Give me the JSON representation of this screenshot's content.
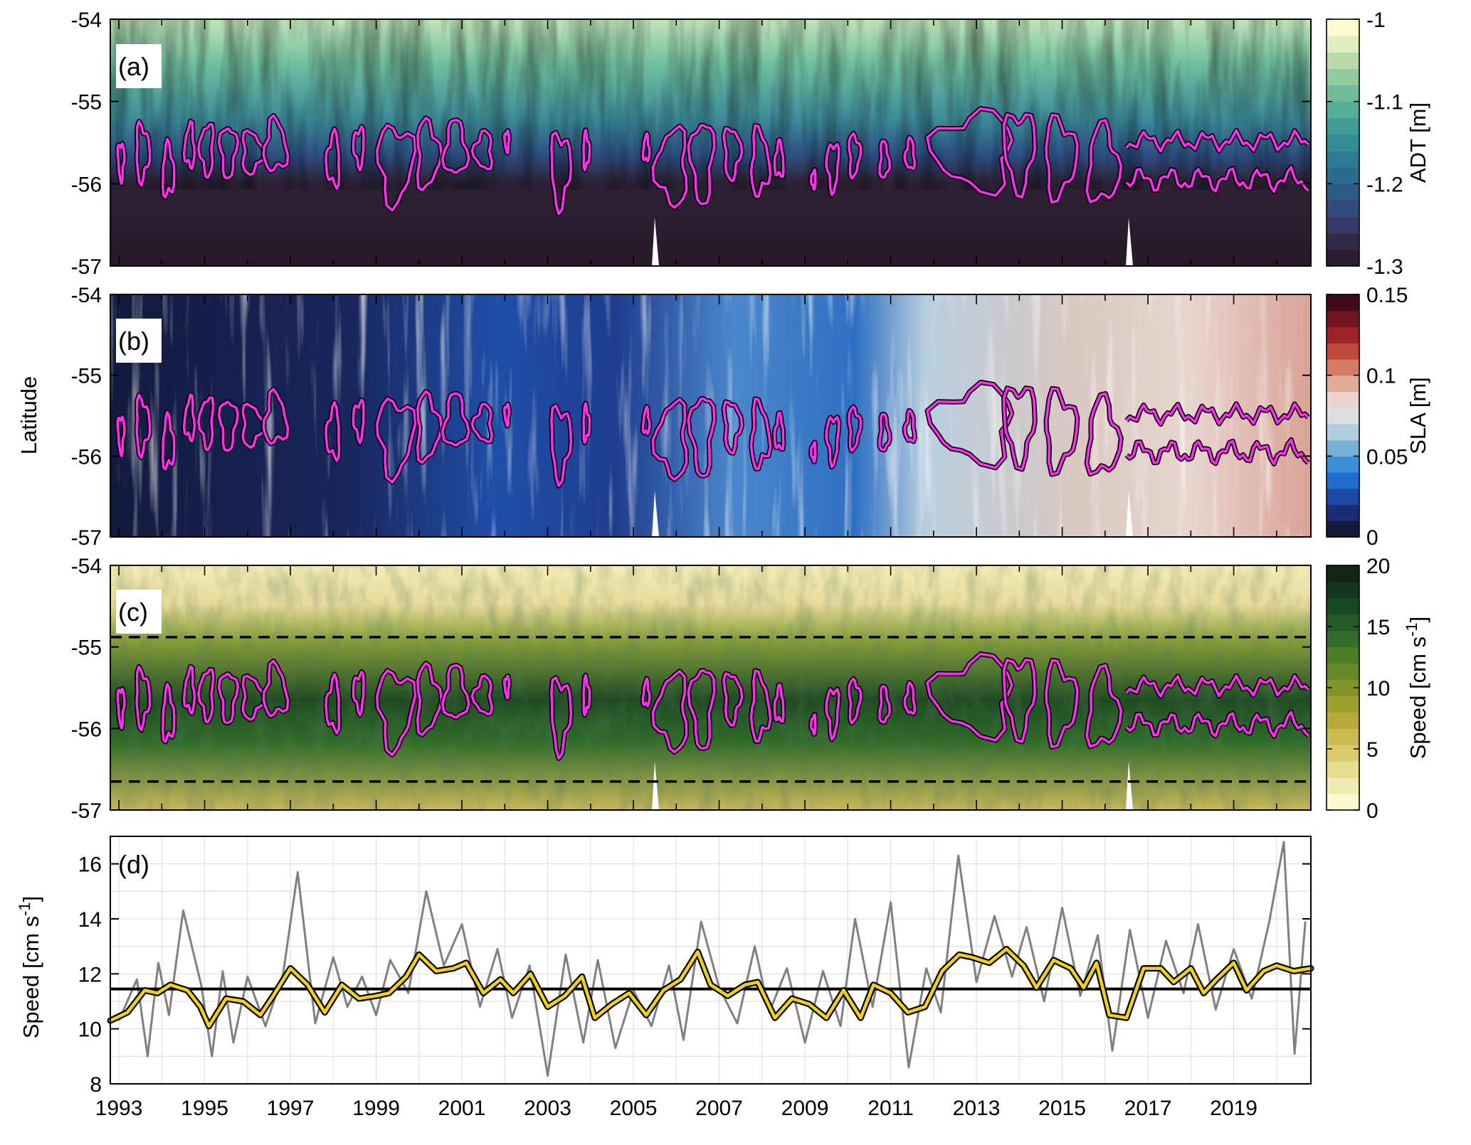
{
  "chart_data": [
    {
      "panel": "(a)",
      "type": "heatmap",
      "xlabel": "",
      "ylabel": "",
      "ylim": [
        -57,
        -54
      ],
      "yticks": [
        "-54",
        "-55",
        "-56",
        "-57"
      ],
      "colorbar": {
        "label": "ADT [m]",
        "range": [
          -1.3,
          -1.0
        ],
        "ticks": [
          "-1",
          "-1.1",
          "-1.2",
          "-1.3"
        ],
        "colors": [
          "#2a1d2e",
          "#322a49",
          "#353a66",
          "#334a7c",
          "#2e5a88",
          "#2a6b8f",
          "#2c7c93",
          "#338d96",
          "#3f9c97",
          "#55ac98",
          "#72bb9a",
          "#93ca9f",
          "#b9dba9",
          "#e0edbe",
          "#fdfcd0"
        ]
      }
    },
    {
      "panel": "(b)",
      "type": "heatmap",
      "xlabel": "",
      "ylabel": "Latitude",
      "ylim": [
        -57,
        -54
      ],
      "yticks": [
        "-54",
        "-55",
        "-56",
        "-57"
      ],
      "colorbar": {
        "label": "SLA [m]",
        "range": [
          0,
          0.15
        ],
        "ticks": [
          "0.15",
          "0.1",
          "0.05",
          "0"
        ],
        "colors": [
          "#141a3e",
          "#1b2d77",
          "#1d4aa8",
          "#1f6dcc",
          "#3c8fd6",
          "#79b0d8",
          "#b0cedc",
          "#dcdfe1",
          "#ead5cc",
          "#e2ac99",
          "#d27e65",
          "#bd4a3b",
          "#9c2327",
          "#711524",
          "#420b17"
        ]
      }
    },
    {
      "panel": "(c)",
      "type": "heatmap",
      "xlabel": "",
      "ylabel": "",
      "ylim": [
        -57,
        -54
      ],
      "yticks": [
        "-54",
        "-55",
        "-56",
        "-57"
      ],
      "reference_lines": [
        -54.88,
        -56.65
      ],
      "colorbar": {
        "label": "Speed [cm s",
        "label_superscript": "-1",
        "label_close": "]",
        "range": [
          0,
          20
        ],
        "ticks": [
          "20",
          "15",
          "10",
          "5",
          "0"
        ],
        "colors": [
          "#fbf8d2",
          "#f2ebb0",
          "#e8dc8f",
          "#dccb6e",
          "#cdb951",
          "#b9aa39",
          "#9f9f2c",
          "#839527",
          "#678a26",
          "#4c7d27",
          "#346d29",
          "#245b28",
          "#1a4824",
          "#15361e",
          "#112617"
        ]
      }
    },
    {
      "panel": "(d)",
      "type": "line",
      "xlabel": "",
      "ylabel": "Speed [cm s",
      "ylabel_superscript": "-1",
      "ylabel_close": "]",
      "xlim": [
        1992.8,
        2020.8
      ],
      "ylim": [
        8,
        17
      ],
      "yticks": [
        "8",
        "10",
        "12",
        "14",
        "16"
      ],
      "xticks": [
        "1993",
        "1995",
        "1997",
        "1999",
        "2001",
        "2003",
        "2005",
        "2007",
        "2009",
        "2011",
        "2013",
        "2015",
        "2017",
        "2019"
      ],
      "mean_line": 11.45,
      "series": [
        {
          "style": "monthly",
          "color": "#808080",
          "x": [
            1993.0,
            1993.42,
            1993.67,
            1993.92,
            1994.17,
            1994.5,
            1994.92,
            1995.17,
            1995.42,
            1995.67,
            1996.0,
            1996.42,
            1996.83,
            1997.17,
            1997.58,
            1998.0,
            1998.33,
            1998.67,
            1999.0,
            1999.33,
            1999.75,
            2000.17,
            2000.58,
            2001.0,
            2001.42,
            2001.83,
            2002.17,
            2002.58,
            2003.0,
            2003.42,
            2003.83,
            2004.17,
            2004.58,
            2005.0,
            2005.42,
            2005.83,
            2006.17,
            2006.58,
            2007.0,
            2007.42,
            2007.83,
            2008.17,
            2008.58,
            2009.0,
            2009.42,
            2009.83,
            2010.17,
            2010.58,
            2011.0,
            2011.42,
            2011.83,
            2012.17,
            2012.58,
            2013.0,
            2013.42,
            2013.83,
            2014.17,
            2014.58,
            2015.0,
            2015.42,
            2015.83,
            2016.17,
            2016.58,
            2017.0,
            2017.42,
            2017.83,
            2018.17,
            2018.58,
            2019.0,
            2019.42,
            2019.83,
            2020.17,
            2020.42,
            2020.67
          ],
          "y": [
            10.3,
            11.8,
            9.0,
            12.4,
            10.5,
            14.3,
            11.6,
            9.0,
            12.1,
            9.5,
            11.9,
            10.1,
            12.0,
            15.7,
            10.2,
            12.6,
            10.8,
            11.9,
            10.5,
            12.5,
            11.3,
            15.0,
            12.3,
            13.8,
            10.8,
            12.9,
            10.4,
            12.3,
            8.3,
            12.7,
            9.5,
            12.5,
            9.3,
            11.4,
            10.1,
            12.3,
            9.6,
            13.9,
            11.5,
            10.2,
            13.0,
            10.6,
            12.2,
            9.5,
            12.1,
            10.1,
            14.0,
            10.8,
            14.6,
            8.6,
            12.2,
            10.6,
            16.3,
            11.7,
            14.1,
            11.9,
            13.7,
            11.0,
            14.4,
            11.2,
            13.4,
            9.2,
            13.6,
            10.4,
            13.2,
            11.3,
            13.8,
            10.7,
            12.9,
            11.1,
            13.9,
            16.8,
            9.1,
            13.9
          ]
        },
        {
          "style": "smoothed",
          "color": "#f2d017",
          "x": [
            1992.8,
            1993.2,
            1993.6,
            1993.9,
            1994.2,
            1994.6,
            1994.9,
            1995.1,
            1995.5,
            1995.9,
            1996.3,
            1996.6,
            1997.0,
            1997.4,
            1997.8,
            1998.2,
            1998.6,
            1999.0,
            1999.3,
            1999.7,
            2000.0,
            2000.4,
            2000.8,
            2001.1,
            2001.5,
            2001.9,
            2002.2,
            2002.6,
            2003.0,
            2003.4,
            2003.8,
            2004.1,
            2004.5,
            2004.9,
            2005.3,
            2005.7,
            2006.1,
            2006.5,
            2006.8,
            2007.2,
            2007.6,
            2007.9,
            2008.3,
            2008.7,
            2009.1,
            2009.5,
            2009.9,
            2010.3,
            2010.6,
            2011.0,
            2011.4,
            2011.8,
            2012.2,
            2012.6,
            2012.9,
            2013.3,
            2013.7,
            2014.1,
            2014.4,
            2014.8,
            2015.2,
            2015.5,
            2015.8,
            2016.1,
            2016.5,
            2016.9,
            2017.3,
            2017.6,
            2018.0,
            2018.3,
            2018.6,
            2019.0,
            2019.3,
            2019.7,
            2020.0,
            2020.4,
            2020.8
          ],
          "y": [
            10.3,
            10.6,
            11.4,
            11.3,
            11.6,
            11.4,
            10.8,
            10.1,
            11.1,
            11.0,
            10.5,
            11.2,
            12.2,
            11.6,
            10.6,
            11.6,
            11.1,
            11.2,
            11.3,
            11.9,
            12.7,
            12.1,
            12.2,
            12.4,
            11.3,
            11.8,
            11.3,
            12.0,
            10.8,
            11.2,
            11.9,
            10.4,
            10.9,
            11.3,
            10.5,
            11.4,
            11.8,
            12.8,
            11.6,
            11.2,
            11.6,
            11.7,
            10.4,
            11.1,
            10.9,
            10.4,
            11.4,
            10.4,
            11.6,
            11.3,
            10.6,
            10.8,
            12.1,
            12.7,
            12.6,
            12.4,
            12.9,
            12.3,
            11.5,
            12.5,
            12.2,
            11.5,
            12.4,
            10.5,
            10.4,
            12.2,
            12.2,
            11.7,
            12.2,
            11.3,
            11.8,
            12.4,
            11.4,
            12.1,
            12.3,
            12.1,
            12.2
          ]
        }
      ]
    }
  ]
}
